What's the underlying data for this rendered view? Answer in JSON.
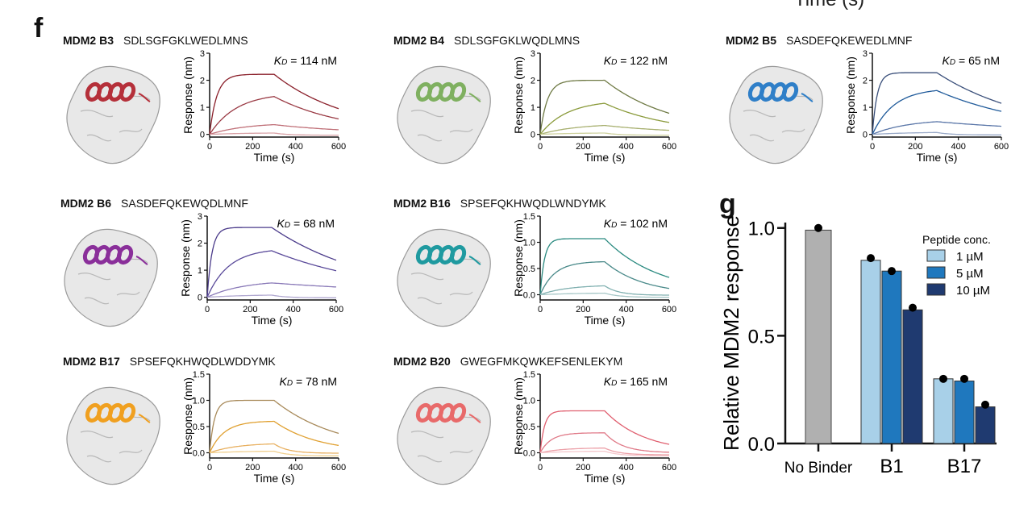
{
  "figure": {
    "panel_f_letter": "f",
    "panel_g_letter": "g",
    "cut_off_label": "Time (s)"
  },
  "chart_data": [
    {
      "type": "line",
      "panel": "f",
      "name": "MDM2 B3",
      "sequence": "SDLSGFGKLWEDLMNS",
      "kd_label": "K",
      "kd_sub": "D",
      "kd_value": "= 114 nM",
      "xlabel": "Time (s)",
      "ylabel": "Response (nm)",
      "xlim": [
        0,
        600
      ],
      "ylim": [
        -0.1,
        3
      ],
      "xticks": [
        "0",
        "200",
        "400",
        "600"
      ],
      "yticks": [
        "0",
        "1",
        "2",
        "3"
      ],
      "ytick_values": [
        0,
        1,
        2,
        3
      ],
      "helix_color": "#b5303a",
      "series_colors": [
        "#8a1f2a",
        "#9a3a44",
        "#c07078",
        "#d9a3a8"
      ],
      "association_end": 300,
      "series_peaks": [
        2.22,
        1.4,
        0.36,
        0.05
      ],
      "series_end": [
        0.95,
        0.57,
        0.17,
        -0.03
      ],
      "series_rates": [
        0.03,
        0.008,
        0.006,
        0.005
      ]
    },
    {
      "type": "line",
      "panel": "f",
      "name": "MDM2 B4",
      "sequence": "SDLSGFGKLWQDLMNS",
      "kd_label": "K",
      "kd_sub": "D",
      "kd_value": "= 122 nM",
      "xlabel": "Time (s)",
      "ylabel": "Response (nm)",
      "xlim": [
        0,
        600
      ],
      "ylim": [
        -0.1,
        3
      ],
      "xticks": [
        "0",
        "200",
        "400",
        "600"
      ],
      "yticks": [
        "0",
        "1",
        "2",
        "3"
      ],
      "ytick_values": [
        0,
        1,
        2,
        3
      ],
      "helix_color": "#7fb060",
      "series_colors": [
        "#6f7a45",
        "#8a9a3a",
        "#a8b070",
        "#cfd2a0"
      ],
      "association_end": 300,
      "series_peaks": [
        2.0,
        1.15,
        0.33,
        0.05
      ],
      "series_end": [
        0.78,
        0.44,
        0.15,
        -0.03
      ],
      "series_rates": [
        0.03,
        0.008,
        0.006,
        0.005
      ]
    },
    {
      "type": "line",
      "panel": "f",
      "name": "MDM2 B5",
      "sequence": "SASDEFQKEWEDLMNF",
      "kd_label": "K",
      "kd_sub": "D",
      "kd_value": "= 65 nM",
      "xlabel": "Time (s)",
      "ylabel": "Response (nm)",
      "xlim": [
        0,
        600
      ],
      "ylim": [
        -0.1,
        3
      ],
      "xticks": [
        "0",
        "200",
        "400",
        "600"
      ],
      "yticks": [
        "0",
        "1",
        "2",
        "3"
      ],
      "ytick_values": [
        0,
        1,
        2,
        3
      ],
      "helix_color": "#2f7fc8",
      "series_colors": [
        "#3a4f7a",
        "#1f5a9a",
        "#5a76a8",
        "#9aaac8"
      ],
      "association_end": 300,
      "series_peaks": [
        2.28,
        1.62,
        0.47,
        0.07
      ],
      "series_end": [
        1.15,
        0.85,
        0.3,
        -0.02
      ],
      "series_rates": [
        0.045,
        0.01,
        0.006,
        0.005
      ]
    },
    {
      "type": "line",
      "panel": "f",
      "name": "MDM2 B6",
      "sequence": "SASDEFQKEWQDLMNF",
      "kd_label": "K",
      "kd_sub": "D",
      "kd_value": "= 68 nM",
      "xlabel": "Time (s)",
      "ylabel": "Response (nm)",
      "xlim": [
        0,
        600
      ],
      "ylim": [
        -0.1,
        3
      ],
      "xticks": [
        "0",
        "200",
        "400",
        "600"
      ],
      "yticks": [
        "0",
        "1",
        "2",
        "3"
      ],
      "ytick_values": [
        0,
        1,
        2,
        3
      ],
      "helix_color": "#8a2f9a",
      "series_colors": [
        "#4a3a8a",
        "#5a4a9a",
        "#8a7ab8",
        "#b0a8d0"
      ],
      "association_end": 300,
      "series_peaks": [
        2.58,
        1.72,
        0.53,
        0.08
      ],
      "series_end": [
        1.37,
        0.98,
        0.38,
        -0.02
      ],
      "series_rates": [
        0.045,
        0.01,
        0.006,
        0.005
      ]
    },
    {
      "type": "line",
      "panel": "f",
      "name": "MDM2 B16",
      "sequence": "SPSEFQKHWQDLWNDYMK",
      "kd_label": "K",
      "kd_sub": "D",
      "kd_value": "= 102 nM",
      "xlabel": "Time (s)",
      "ylabel": "Response (nm)",
      "xlim": [
        0,
        600
      ],
      "ylim": [
        -0.1,
        1.5
      ],
      "xticks": [
        "0",
        "200",
        "400",
        "600"
      ],
      "yticks": [
        "0.0",
        "0.5",
        "1.0",
        "1.5"
      ],
      "ytick_values": [
        0,
        0.5,
        1.0,
        1.5
      ],
      "helix_color": "#1f9aa0",
      "series_colors": [
        "#2a8a80",
        "#4a8a8a",
        "#80b0b0",
        "#a8c8c8"
      ],
      "association_end": 300,
      "series_peaks": [
        1.07,
        0.63,
        0.17,
        0.03
      ],
      "series_end": [
        0.33,
        0.12,
        -0.01,
        -0.05
      ],
      "series_rates": [
        0.05,
        0.015,
        0.008,
        0.005
      ]
    },
    {
      "type": "line",
      "panel": "f",
      "name": "MDM2 B17",
      "sequence": "SPSEFQKHWQDLWDDYMK",
      "kd_label": "K",
      "kd_sub": "D",
      "kd_value": "= 78 nM",
      "xlabel": "Time (s)",
      "ylabel": "Response (nm)",
      "xlim": [
        0,
        600
      ],
      "ylim": [
        -0.1,
        1.5
      ],
      "xticks": [
        "0",
        "200",
        "400",
        "600"
      ],
      "yticks": [
        "0.0",
        "0.5",
        "1.0",
        "1.5"
      ],
      "ytick_values": [
        0,
        0.5,
        1.0,
        1.5
      ],
      "helix_color": "#f0a020",
      "series_colors": [
        "#a88a5a",
        "#e0a030",
        "#e8b060",
        "#f0d090"
      ],
      "association_end": 300,
      "series_peaks": [
        1.0,
        0.6,
        0.17,
        0.03
      ],
      "series_end": [
        0.37,
        0.14,
        -0.01,
        -0.06
      ],
      "series_rates": [
        0.045,
        0.015,
        0.008,
        0.005
      ]
    },
    {
      "type": "line",
      "panel": "f",
      "name": "MDM2 B20",
      "sequence": "GWEGFMKQWKEFSENLEKYM",
      "kd_label": "K",
      "kd_sub": "D",
      "kd_value": "= 165 nM",
      "xlabel": "Time (s)",
      "ylabel": "Response (nm)",
      "xlim": [
        0,
        600
      ],
      "ylim": [
        -0.1,
        1.5
      ],
      "xticks": [
        "0",
        "200",
        "400",
        "600"
      ],
      "yticks": [
        "0.0",
        "0.5",
        "1.0",
        "1.5"
      ],
      "ytick_values": [
        0,
        0.5,
        1.0,
        1.5
      ],
      "helix_color": "#e86a6a",
      "series_colors": [
        "#e06070",
        "#e07a88",
        "#eca0a8",
        "#f4c8cc"
      ],
      "association_end": 300,
      "series_peaks": [
        0.8,
        0.38,
        0.09,
        0.03
      ],
      "series_end": [
        0.16,
        0.01,
        -0.04,
        -0.06
      ],
      "series_rates": [
        0.05,
        0.02,
        0.01,
        0.006
      ]
    },
    {
      "type": "bar",
      "panel": "g",
      "title": "",
      "ylabel": "Relative MDM2 response",
      "xlabel": "",
      "ylim": [
        0,
        1.1
      ],
      "yticks": [
        "0.0",
        "0.5",
        "1.0"
      ],
      "ytick_values": [
        0,
        0.5,
        1.0
      ],
      "categories": [
        "No Binder",
        "B1",
        "B17"
      ],
      "legend_title": "Peptide conc.",
      "legend_position": "top-right",
      "control": {
        "name": "No Binder",
        "value": 0.99,
        "point": 1.0,
        "color": "#b0b0b0"
      },
      "series": [
        {
          "name": "1 µM",
          "color": "#a8d0e8",
          "values": [
            null,
            0.85,
            0.3
          ],
          "points": [
            null,
            0.86,
            0.3
          ]
        },
        {
          "name": "5 µM",
          "color": "#1f78be",
          "values": [
            null,
            0.8,
            0.29
          ],
          "points": [
            null,
            0.8,
            0.3
          ]
        },
        {
          "name": "10 µM",
          "color": "#1f3a70",
          "values": [
            null,
            0.62,
            0.17
          ],
          "points": [
            null,
            0.63,
            0.18
          ]
        }
      ]
    }
  ]
}
